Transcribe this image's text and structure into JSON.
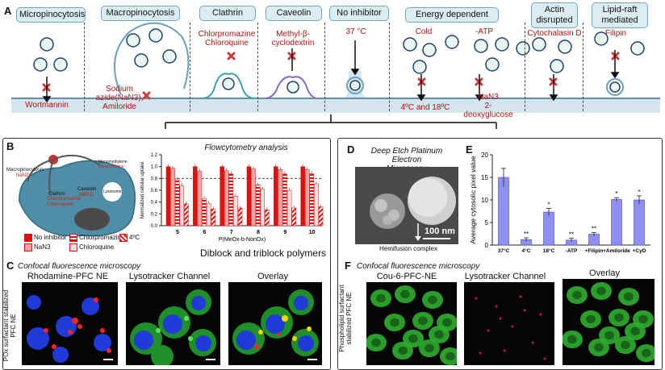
{
  "panel_labels": {
    "a": "A",
    "b": "B",
    "c": "C",
    "d": "D",
    "e": "E",
    "f": "F"
  },
  "panel_a": {
    "tabs": [
      "Micropinocytosis",
      "Macropinocytosis",
      "Clathrin",
      "Caveolin",
      "No inhibitor",
      "Energy dependent",
      "Actin disrupted",
      "Lipid-raft mediated"
    ],
    "agents": {
      "wortmannin": "Wortmannin",
      "sodium_azide_1": "Sodium",
      "sodium_azide_2": "azide(NaN3),",
      "sodium_azide_3": "Amiloride",
      "clathrin_1": "Chlorpromazine",
      "clathrin_2": "Chloroquine",
      "caveolin_1": "Methyl-β-",
      "caveolin_2": "cyclodextrin",
      "temp": "37 °C",
      "cold": "Cold",
      "cold_temps": "4ºC and 18ºC",
      "atp": "-ATP",
      "nan3": "NaN3",
      "deoxy": "2-deoxyglucose",
      "cytochalasin": "Cytochalasin D",
      "filipin": "Filipin"
    }
  },
  "panel_b": {
    "cell_labels": {
      "macro": "Macropinocytosis",
      "macro_agent": "NaN3",
      "clathrin": "Clathrin",
      "clathrin_agent": "Chlorpromazine Chloroquine",
      "caveolin": "Caveolin",
      "caveolin_agent": "MBCD",
      "mono": "Monomethylene",
      "mono_agent": "Glycerylamine",
      "lysosome": "Lysosome"
    },
    "legend": [
      "No inhibitor",
      "NaN3",
      "Chlorpromazine",
      "Chloroquine",
      "4ºC"
    ],
    "caption": "Diblock and triblock polymers"
  },
  "chart_data": [
    {
      "type": "bar",
      "title": "Flowcytometry analysis",
      "ylabel": "Normalized cellular uptake",
      "xlabel": "P(MeOx-b-NonOx)",
      "categories": [
        "5",
        "6",
        "7",
        "8",
        "9",
        "10"
      ],
      "ylim": [
        0,
        1.2
      ],
      "yticks": [
        0.0,
        0.2,
        0.4,
        0.6,
        0.8,
        1.0,
        1.2
      ],
      "reference_line": 0.8,
      "series": [
        {
          "name": "No inhibitor",
          "values": [
            1.0,
            1.0,
            1.0,
            1.0,
            1.0,
            1.0
          ]
        },
        {
          "name": "NaN3",
          "values": [
            0.97,
            0.92,
            0.93,
            0.96,
            0.95,
            0.95
          ]
        },
        {
          "name": "Chlorpromazine",
          "values": [
            0.78,
            0.46,
            0.88,
            0.69,
            0.88,
            0.88
          ]
        },
        {
          "name": "Chloroquine",
          "values": [
            0.68,
            0.38,
            0.5,
            0.62,
            0.6,
            0.71
          ]
        },
        {
          "name": "4ºC",
          "values": [
            0.37,
            0.28,
            0.3,
            0.27,
            0.3,
            0.32
          ]
        }
      ]
    },
    {
      "type": "bar",
      "ylabel": "Average cytosolic pixel value",
      "categories": [
        "37°C",
        "4°C",
        "18°C",
        "-ATP",
        "+Filipin",
        "+Amiloride",
        "+CyD"
      ],
      "ylim": [
        0,
        20
      ],
      "yticks": [
        0,
        5,
        10,
        15,
        20
      ],
      "values": [
        15.0,
        1.2,
        7.3,
        1.1,
        2.4,
        10.1,
        10.0
      ],
      "errors": [
        2.0,
        0.4,
        0.8,
        0.4,
        0.4,
        0.4,
        0.9
      ],
      "significance": [
        "",
        "**",
        "*",
        "**",
        "**",
        "*",
        "*"
      ]
    }
  ],
  "panel_c": {
    "title": "Confocal fluorescence microscopy",
    "side_label": "POx surfactant stabilized PFC NE",
    "columns": [
      "Rhodamine-PFC NE",
      "Lysotracker Channel",
      "Overlay"
    ]
  },
  "panel_d": {
    "title_1": "Deep Etch Platinum Electron",
    "title_2": "Microscopy",
    "scale": "100 nm",
    "caption": "Hemifusion complex"
  },
  "panel_f": {
    "title": "Confocal fluorescence microscopy",
    "side_label": "Phospholipid surfactant stabilized PFC NE",
    "columns": [
      "Cou-6-PFC-NE",
      "Lysotracker Channel",
      "Overlay"
    ]
  }
}
